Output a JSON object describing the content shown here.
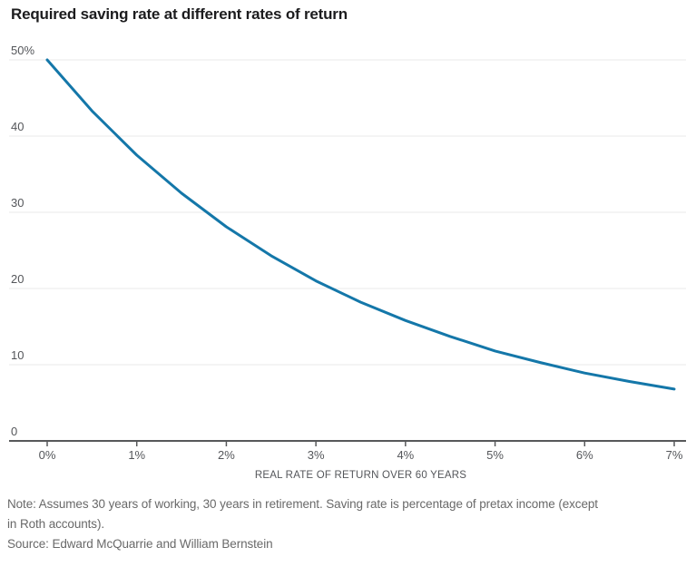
{
  "title": "Required saving rate at different rates of return",
  "note_lines": [
    "Note: Assumes 30 years of working, 30 years in retirement. Saving rate is percentage of pretax income (except",
    "in Roth accounts)."
  ],
  "source": "Source: Edward McQuarrie and William Bernstein",
  "colors": {
    "line": "#1477a9",
    "grid": "#e8e8e8",
    "axis": "#57585a",
    "tick_label": "#54565a",
    "axis_title": "#54565a",
    "title": "#1c1c1e",
    "note": "#696969",
    "background": "#ffffff"
  },
  "chart_data": {
    "type": "line",
    "title": "Required saving rate at different rates of return",
    "xlabel": "REAL RATE OF RETURN OVER 60 YEARS",
    "ylabel": "",
    "x": [
      0,
      0.5,
      1,
      1.5,
      2,
      2.5,
      3,
      3.5,
      4,
      4.5,
      5,
      5.5,
      6,
      6.5,
      7
    ],
    "values": [
      50,
      43.3,
      37.5,
      32.5,
      28.1,
      24.3,
      21.0,
      18.2,
      15.8,
      13.7,
      11.8,
      10.3,
      8.9,
      7.8,
      6.8
    ],
    "xlim": [
      0,
      7
    ],
    "ylim": [
      0,
      50
    ],
    "x_ticks": [
      0,
      1,
      2,
      3,
      4,
      5,
      6,
      7
    ],
    "x_tick_labels": [
      "0%",
      "1%",
      "2%",
      "3%",
      "4%",
      "5%",
      "6%",
      "7%"
    ],
    "y_ticks": [
      0,
      10,
      20,
      30,
      40,
      50
    ],
    "y_tick_labels": [
      "0",
      "10",
      "20",
      "30",
      "40",
      "50%"
    ],
    "grid": "horizontal",
    "legend": "none"
  }
}
